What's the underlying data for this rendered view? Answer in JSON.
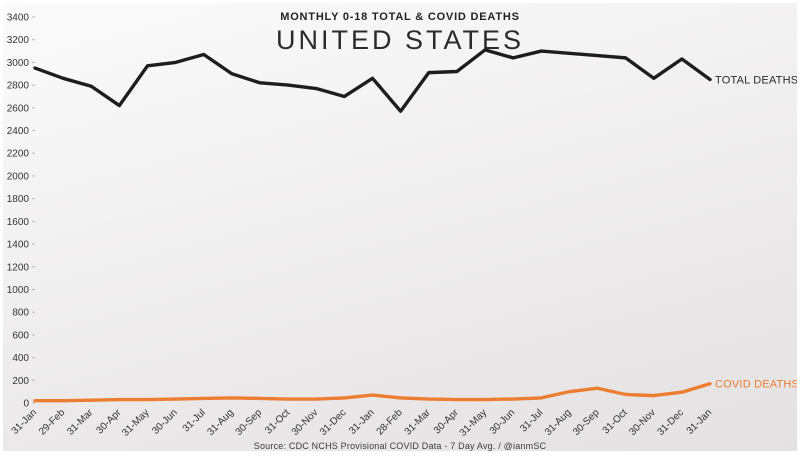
{
  "header": {
    "subtitle": "MONTHLY 0-18 TOTAL & COVID DEATHS",
    "title": "UNITED STATES"
  },
  "footer": {
    "source": "Source: CDC NCHS Provisional COVID Data - 7 Day Avg. / @ianmSC"
  },
  "chart_data": {
    "type": "line",
    "title": "UNITED STATES",
    "subtitle": "MONTHLY 0-18 TOTAL & COVID DEATHS",
    "xlabel": "",
    "ylabel": "",
    "ylim": [
      0,
      3400
    ],
    "ytick_step": 200,
    "grid": false,
    "legend_position": "line-end-right",
    "categories": [
      "31-Jan",
      "29-Feb",
      "31-Mar",
      "30-Apr",
      "31-May",
      "30-Jun",
      "31-Jul",
      "31-Aug",
      "30-Sep",
      "31-Oct",
      "30-Nov",
      "31-Dec",
      "31-Jan",
      "28-Feb",
      "31-Mar",
      "30-Apr",
      "31-May",
      "30-Jun",
      "31-Jul",
      "31-Aug",
      "30-Sep",
      "31-Oct",
      "30-Nov",
      "31-Dec",
      "31-Jan"
    ],
    "series": [
      {
        "name": "Total Deaths",
        "label": "TOTAL DEATHS",
        "color": "#1d1d1d",
        "label_color": "#2b2b2b",
        "values": [
          2950,
          2860,
          2790,
          2620,
          2970,
          3000,
          3070,
          2900,
          2820,
          2800,
          2770,
          2700,
          2860,
          2570,
          2910,
          2920,
          3110,
          3040,
          3100,
          3080,
          3060,
          3040,
          2860,
          3030,
          2850
        ]
      },
      {
        "name": "Covid Deaths",
        "label": "COVID DEATHS",
        "color": "#ED7D31",
        "label_color": "#ED7D31",
        "values": [
          20,
          20,
          25,
          30,
          30,
          35,
          40,
          45,
          40,
          35,
          35,
          45,
          70,
          45,
          35,
          30,
          30,
          35,
          45,
          100,
          130,
          75,
          65,
          95,
          170
        ]
      }
    ]
  }
}
